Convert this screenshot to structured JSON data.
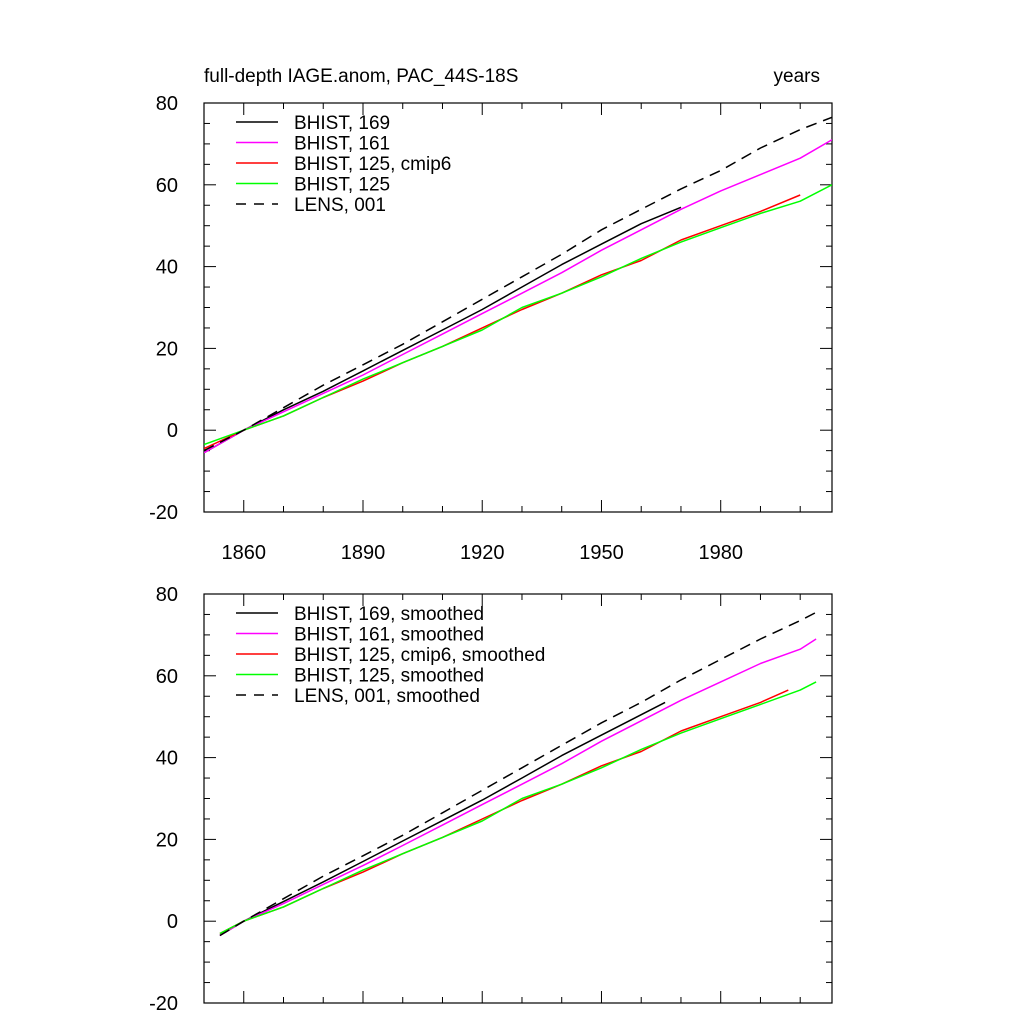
{
  "chart_data": [
    {
      "type": "line",
      "title_left": "full-depth IAGE.anom, PAC_44S-18S",
      "title_right": "years",
      "xlim": [
        1850,
        2008
      ],
      "ylim": [
        -20,
        80
      ],
      "xticks": [
        1860,
        1890,
        1920,
        1950,
        1980
      ],
      "yticks": [
        -20,
        0,
        20,
        40,
        60,
        80
      ],
      "show_x_tick_labels": true,
      "legend_position": "top-left",
      "series": [
        {
          "name": "BHIST, 169",
          "color": "#000000",
          "dash": "solid",
          "x": [
            1850,
            1860,
            1870,
            1880,
            1890,
            1900,
            1910,
            1920,
            1930,
            1940,
            1950,
            1960,
            1970
          ],
          "y": [
            -5.5,
            0,
            5,
            9.5,
            14.5,
            19.5,
            24.5,
            29.5,
            35,
            40.5,
            45.5,
            50.5,
            54.5
          ]
        },
        {
          "name": "BHIST, 161",
          "color": "#ff00ff",
          "dash": "solid",
          "x": [
            1850,
            1860,
            1870,
            1880,
            1890,
            1900,
            1910,
            1920,
            1930,
            1940,
            1950,
            1960,
            1970,
            1980,
            1990,
            2000,
            2008
          ],
          "y": [
            -5.5,
            0,
            4.5,
            9,
            13.5,
            18.5,
            23.5,
            28.5,
            33.5,
            38.5,
            44,
            49,
            54,
            58.5,
            62.5,
            66.5,
            71
          ]
        },
        {
          "name": "BHIST, 125, cmip6",
          "color": "#ff0000",
          "dash": "solid",
          "x": [
            1850,
            1860,
            1870,
            1880,
            1890,
            1900,
            1910,
            1920,
            1930,
            1940,
            1950,
            1960,
            1970,
            1980,
            1990,
            2000
          ],
          "y": [
            -4.5,
            0,
            3.5,
            8,
            12,
            16.5,
            20.5,
            25,
            29.5,
            33.5,
            38,
            41.5,
            46.5,
            50,
            53.5,
            57.5
          ]
        },
        {
          "name": "BHIST, 125",
          "color": "#00ff00",
          "dash": "solid",
          "x": [
            1850,
            1860,
            1870,
            1880,
            1890,
            1900,
            1910,
            1920,
            1930,
            1940,
            1950,
            1960,
            1970,
            1980,
            1990,
            2000,
            2008
          ],
          "y": [
            -3.5,
            0,
            3.5,
            8,
            12.5,
            16.5,
            20.5,
            24.5,
            30,
            33.5,
            37.5,
            42,
            46,
            49.5,
            53,
            56,
            60
          ]
        },
        {
          "name": "LENS, 001",
          "color": "#000000",
          "dash": "dashed",
          "x": [
            1850,
            1860,
            1870,
            1880,
            1890,
            1900,
            1910,
            1920,
            1930,
            1940,
            1950,
            1960,
            1970,
            1980,
            1990,
            2000,
            2008
          ],
          "y": [
            -5,
            0,
            5.5,
            11,
            16,
            21,
            26.5,
            32,
            37.5,
            43,
            49,
            54,
            59,
            63.5,
            69,
            73.5,
            76.5
          ]
        }
      ]
    },
    {
      "type": "line",
      "title_left": "",
      "title_right": "",
      "xlim": [
        1850,
        2008
      ],
      "ylim": [
        -20,
        80
      ],
      "xticks": [
        1860,
        1890,
        1920,
        1950,
        1980
      ],
      "yticks": [
        -20,
        0,
        20,
        40,
        60,
        80
      ],
      "show_x_tick_labels": false,
      "legend_position": "top-left",
      "series": [
        {
          "name": "BHIST, 169, smoothed",
          "color": "#000000",
          "dash": "solid",
          "x": [
            1854,
            1860,
            1870,
            1880,
            1890,
            1900,
            1910,
            1920,
            1930,
            1940,
            1950,
            1960,
            1966
          ],
          "y": [
            -3.5,
            0,
            4.8,
            9.6,
            14.6,
            19.6,
            24.6,
            29.6,
            35,
            40.5,
            45.5,
            50.5,
            53.5
          ]
        },
        {
          "name": "BHIST, 161, smoothed",
          "color": "#ff00ff",
          "dash": "solid",
          "x": [
            1854,
            1860,
            1870,
            1880,
            1890,
            1900,
            1910,
            1920,
            1930,
            1940,
            1950,
            1960,
            1970,
            1980,
            1990,
            2000,
            2004
          ],
          "y": [
            -3.5,
            0,
            4.3,
            9,
            13.6,
            18.5,
            23.5,
            28.5,
            33.5,
            38.5,
            44,
            49,
            54,
            58.5,
            63,
            66.5,
            69
          ]
        },
        {
          "name": "BHIST, 125, cmip6, smoothed",
          "color": "#ff0000",
          "dash": "solid",
          "x": [
            1854,
            1860,
            1870,
            1880,
            1890,
            1900,
            1910,
            1920,
            1930,
            1940,
            1950,
            1960,
            1970,
            1980,
            1990,
            1997
          ],
          "y": [
            -3,
            0,
            3.5,
            8,
            12,
            16.5,
            20.5,
            25,
            29.5,
            33.5,
            38,
            41.5,
            46.5,
            50,
            53.5,
            56.5
          ]
        },
        {
          "name": "BHIST, 125, smoothed",
          "color": "#00ff00",
          "dash": "solid",
          "x": [
            1854,
            1860,
            1870,
            1880,
            1890,
            1900,
            1910,
            1920,
            1930,
            1940,
            1950,
            1960,
            1970,
            1980,
            1990,
            2000,
            2004
          ],
          "y": [
            -3,
            0,
            3.5,
            8,
            12.5,
            16.5,
            20.5,
            24.5,
            30,
            33.5,
            37.5,
            42,
            46,
            49.5,
            53,
            56.5,
            58.5
          ]
        },
        {
          "name": "LENS, 001, smoothed",
          "color": "#000000",
          "dash": "dashed",
          "x": [
            1854,
            1860,
            1870,
            1880,
            1890,
            1900,
            1910,
            1920,
            1930,
            1940,
            1950,
            1960,
            1970,
            1980,
            1990,
            2000,
            2004
          ],
          "y": [
            -3.5,
            0,
            5.5,
            11,
            16,
            21,
            26.5,
            32,
            37.5,
            43,
            48.5,
            53.5,
            59,
            64,
            69,
            73.5,
            75.5
          ]
        }
      ]
    }
  ]
}
